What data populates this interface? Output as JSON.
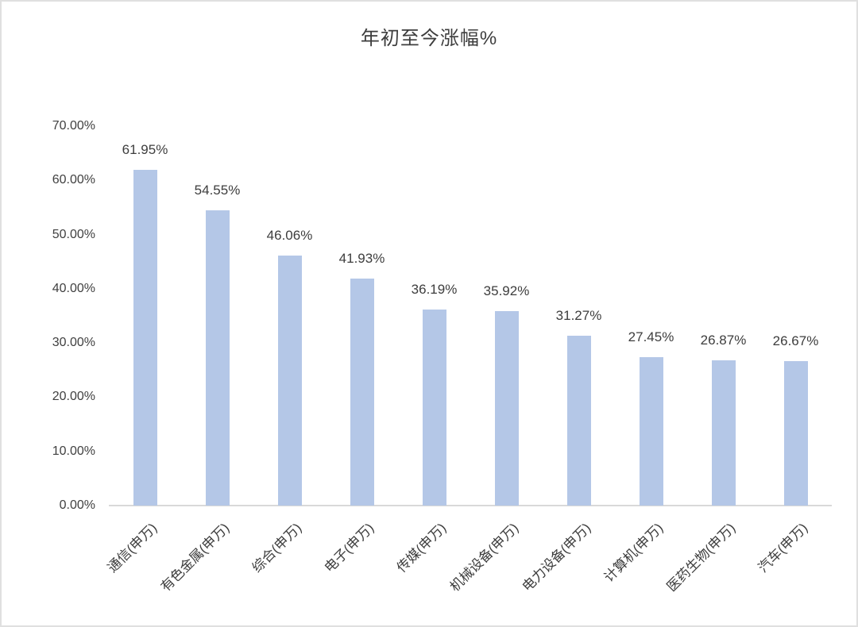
{
  "page": {
    "background": "#ffffff",
    "border_color": "#e0e0e0"
  },
  "chart_data": {
    "type": "bar",
    "title": "年初至今涨幅%",
    "xlabel": "",
    "ylabel": "",
    "categories": [
      "通信(申万)",
      "有色金属(申万)",
      "综合(申万)",
      "电子(申万)",
      "传媒(申万)",
      "机械设备(申万)",
      "电力设备(申万)",
      "计算机(申万)",
      "医药生物(申万)",
      "汽车(申万)"
    ],
    "values": [
      61.95,
      54.55,
      46.06,
      41.93,
      36.19,
      35.92,
      31.27,
      27.45,
      26.87,
      26.67
    ],
    "data_labels": [
      "61.95%",
      "54.55%",
      "46.06%",
      "41.93%",
      "36.19%",
      "35.92%",
      "31.27%",
      "27.45%",
      "26.87%",
      "26.67%"
    ],
    "y_tick_labels": [
      "0.00%",
      "10.00%",
      "20.00%",
      "30.00%",
      "40.00%",
      "50.00%",
      "60.00%",
      "70.00%"
    ],
    "ylim": [
      0,
      70
    ],
    "grid": false,
    "legend": false,
    "bar_color": "#b4c7e7",
    "axis_line_color": "#d9d9d9",
    "text_color": "#404040",
    "title_color": "#3d3d3d",
    "category_label_rotation_deg": -45
  }
}
